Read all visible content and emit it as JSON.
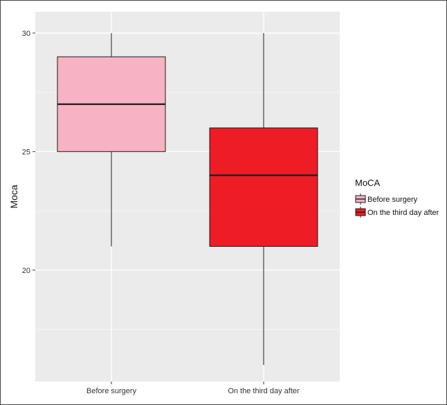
{
  "chart_data": {
    "type": "boxplot",
    "title": "",
    "xlabel": "",
    "ylabel": "Moca",
    "ylim": [
      15.3,
      30.9
    ],
    "yticks": [
      20,
      25,
      30
    ],
    "grid": true,
    "legend": {
      "title": "MoCA",
      "placement": "right",
      "entries": [
        "Before surgery",
        "On the third day after"
      ]
    },
    "categories": [
      "Before surgery",
      "On the third day after"
    ],
    "series": [
      {
        "name": "Before surgery",
        "min": 21,
        "q1": 25,
        "median": 27,
        "q3": 29,
        "max": 30,
        "color": "#f7b2c4"
      },
      {
        "name": "On the third day after",
        "min": 16,
        "q1": 21,
        "median": 24,
        "q3": 26,
        "max": 30,
        "color": "#ee1c25"
      }
    ]
  }
}
